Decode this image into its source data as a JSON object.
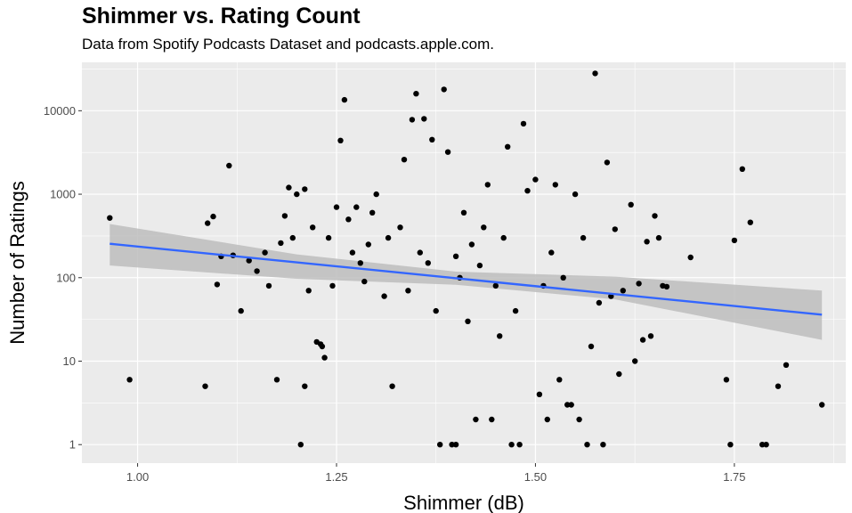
{
  "chart_data": {
    "type": "scatter",
    "title": "Shimmer vs. Rating Count",
    "subtitle": "Data from Spotify Podcasts Dataset and podcasts.apple.com.",
    "xlabel": "Shimmer (dB)",
    "ylabel": "Number of Ratings",
    "x_scale": "linear",
    "y_scale": "log10",
    "xlim": [
      0.93,
      1.89
    ],
    "ylim": [
      0.6,
      38000
    ],
    "x_ticks": [
      1.0,
      1.25,
      1.5,
      1.75
    ],
    "x_tick_labels": [
      "1.00",
      "1.25",
      "1.50",
      "1.75"
    ],
    "y_ticks": [
      1,
      10,
      100,
      1000,
      10000
    ],
    "y_tick_labels": [
      "1",
      "10",
      "100",
      "1000",
      "10000"
    ],
    "grid": true,
    "colors": {
      "panel": "#ebebeb",
      "grid": "#ffffff",
      "points": "#000000",
      "trend_line": "#3366ff",
      "confidence_band": "#bdbdbd"
    },
    "trend": {
      "method": "linear regression on log10(rating count)",
      "line": [
        [
          0.965,
          255
        ],
        [
          1.86,
          36
        ]
      ],
      "band_lower": [
        [
          0.965,
          140
        ],
        [
          1.2,
          97
        ],
        [
          1.4,
          82
        ],
        [
          1.6,
          55
        ],
        [
          1.86,
          18
        ]
      ],
      "band_upper": [
        [
          0.965,
          440
        ],
        [
          1.2,
          190
        ],
        [
          1.4,
          118
        ],
        [
          1.6,
          103
        ],
        [
          1.86,
          70
        ]
      ]
    },
    "points": [
      [
        0.965,
        520
      ],
      [
        0.99,
        6
      ],
      [
        1.085,
        5
      ],
      [
        1.088,
        450
      ],
      [
        1.095,
        540
      ],
      [
        1.1,
        83
      ],
      [
        1.105,
        180
      ],
      [
        1.115,
        2200
      ],
      [
        1.12,
        185
      ],
      [
        1.13,
        40
      ],
      [
        1.14,
        160
      ],
      [
        1.15,
        120
      ],
      [
        1.16,
        200
      ],
      [
        1.165,
        80
      ],
      [
        1.175,
        6
      ],
      [
        1.18,
        260
      ],
      [
        1.185,
        550
      ],
      [
        1.19,
        1200
      ],
      [
        1.195,
        300
      ],
      [
        1.2,
        1000
      ],
      [
        1.205,
        1
      ],
      [
        1.21,
        1150
      ],
      [
        1.21,
        5
      ],
      [
        1.215,
        70
      ],
      [
        1.22,
        400
      ],
      [
        1.225,
        17
      ],
      [
        1.23,
        16
      ],
      [
        1.232,
        15
      ],
      [
        1.235,
        11
      ],
      [
        1.24,
        300
      ],
      [
        1.245,
        80
      ],
      [
        1.25,
        700
      ],
      [
        1.255,
        4400
      ],
      [
        1.26,
        13500
      ],
      [
        1.265,
        500
      ],
      [
        1.27,
        200
      ],
      [
        1.275,
        700
      ],
      [
        1.28,
        150
      ],
      [
        1.285,
        90
      ],
      [
        1.29,
        250
      ],
      [
        1.295,
        600
      ],
      [
        1.3,
        1000
      ],
      [
        1.31,
        60
      ],
      [
        1.315,
        300
      ],
      [
        1.32,
        5
      ],
      [
        1.33,
        400
      ],
      [
        1.335,
        2600
      ],
      [
        1.34,
        70
      ],
      [
        1.345,
        7800
      ],
      [
        1.35,
        16000
      ],
      [
        1.355,
        200
      ],
      [
        1.36,
        8000
      ],
      [
        1.365,
        150
      ],
      [
        1.37,
        4500
      ],
      [
        1.375,
        40
      ],
      [
        1.38,
        1
      ],
      [
        1.385,
        18000
      ],
      [
        1.39,
        3200
      ],
      [
        1.395,
        1
      ],
      [
        1.4,
        1
      ],
      [
        1.4,
        180
      ],
      [
        1.405,
        100
      ],
      [
        1.41,
        600
      ],
      [
        1.415,
        30
      ],
      [
        1.42,
        250
      ],
      [
        1.425,
        2
      ],
      [
        1.43,
        140
      ],
      [
        1.435,
        400
      ],
      [
        1.44,
        1300
      ],
      [
        1.445,
        2
      ],
      [
        1.45,
        80
      ],
      [
        1.455,
        20
      ],
      [
        1.46,
        300
      ],
      [
        1.465,
        3700
      ],
      [
        1.47,
        1
      ],
      [
        1.475,
        40
      ],
      [
        1.48,
        1
      ],
      [
        1.485,
        7000
      ],
      [
        1.49,
        1100
      ],
      [
        1.5,
        1500
      ],
      [
        1.505,
        4
      ],
      [
        1.51,
        80
      ],
      [
        1.515,
        2
      ],
      [
        1.52,
        200
      ],
      [
        1.525,
        1300
      ],
      [
        1.53,
        6
      ],
      [
        1.535,
        100
      ],
      [
        1.54,
        3
      ],
      [
        1.545,
        3
      ],
      [
        1.55,
        1000
      ],
      [
        1.555,
        2
      ],
      [
        1.56,
        300
      ],
      [
        1.565,
        1
      ],
      [
        1.57,
        15
      ],
      [
        1.575,
        28000
      ],
      [
        1.58,
        50
      ],
      [
        1.585,
        1
      ],
      [
        1.59,
        2400
      ],
      [
        1.595,
        60
      ],
      [
        1.6,
        380
      ],
      [
        1.605,
        7
      ],
      [
        1.61,
        70
      ],
      [
        1.62,
        750
      ],
      [
        1.625,
        10
      ],
      [
        1.63,
        85
      ],
      [
        1.635,
        18
      ],
      [
        1.64,
        270
      ],
      [
        1.645,
        20
      ],
      [
        1.65,
        550
      ],
      [
        1.655,
        300
      ],
      [
        1.66,
        80
      ],
      [
        1.665,
        78
      ],
      [
        1.695,
        175
      ],
      [
        1.74,
        6
      ],
      [
        1.745,
        1
      ],
      [
        1.75,
        280
      ],
      [
        1.76,
        2000
      ],
      [
        1.77,
        460
      ],
      [
        1.785,
        1
      ],
      [
        1.79,
        1
      ],
      [
        1.805,
        5
      ],
      [
        1.815,
        9
      ],
      [
        1.86,
        3
      ]
    ]
  }
}
